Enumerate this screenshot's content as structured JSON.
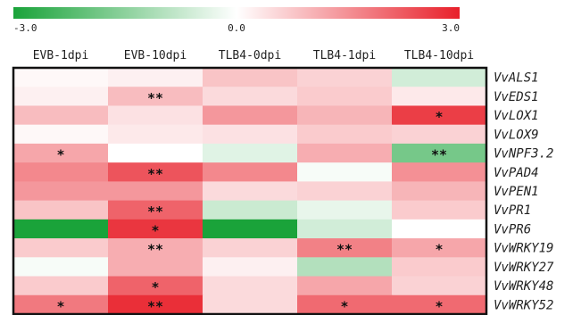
{
  "chart_data": {
    "type": "heatmap",
    "colorbar": {
      "min_label": "-3.0",
      "mid_label": "0.0",
      "max_label": "3.0",
      "vmin": -3.0,
      "vmax": 3.0,
      "low_color": "#1aa33a",
      "mid_color": "#ffffff",
      "high_color": "#e8202a"
    },
    "columns": [
      "EVB-1dpi",
      "EVB-10dpi",
      "TLB4-0dpi",
      "TLB4-1dpi",
      "TLB4-10dpi"
    ],
    "rows": [
      "VvALS1",
      "VvEDS1",
      "VvLOX1",
      "VvLOX9",
      "VvNPF3.2",
      "VvPAD4",
      "VvPEN1",
      "VvPR1",
      "VvPR6",
      "VvWRKY19",
      "VvWRKY27",
      "VvWRKY48",
      "VvWRKY52"
    ],
    "values": [
      [
        0.1,
        0.2,
        0.8,
        0.6,
        -0.6
      ],
      [
        0.2,
        0.9,
        0.5,
        0.7,
        0.3
      ],
      [
        0.9,
        0.4,
        1.4,
        1.0,
        2.6
      ],
      [
        0.1,
        0.3,
        0.4,
        0.7,
        0.6
      ],
      [
        1.2,
        0.0,
        -0.4,
        1.1,
        -1.8
      ],
      [
        1.6,
        2.3,
        1.6,
        -0.1,
        1.5
      ],
      [
        1.4,
        1.4,
        0.5,
        0.6,
        1.0
      ],
      [
        0.8,
        2.1,
        -0.7,
        -0.3,
        0.7
      ],
      [
        -3.0,
        2.7,
        -3.0,
        -0.6,
        0.0
      ],
      [
        0.7,
        1.1,
        0.6,
        1.7,
        1.2
      ],
      [
        -0.1,
        1.1,
        0.2,
        -1.0,
        0.7
      ],
      [
        0.7,
        2.1,
        0.5,
        1.2,
        0.6
      ],
      [
        1.8,
        2.8,
        0.5,
        2.0,
        2.0
      ]
    ],
    "annotations": [
      [
        "",
        "",
        "",
        "",
        ""
      ],
      [
        "",
        "**",
        "",
        "",
        ""
      ],
      [
        "",
        "",
        "",
        "",
        "*"
      ],
      [
        "",
        "",
        "",
        "",
        ""
      ],
      [
        "*",
        "",
        "",
        "",
        "**"
      ],
      [
        "",
        "**",
        "",
        "",
        ""
      ],
      [
        "",
        "",
        "",
        "",
        ""
      ],
      [
        "",
        "**",
        "",
        "",
        ""
      ],
      [
        "",
        "*",
        "",
        "",
        ""
      ],
      [
        "",
        "**",
        "",
        "**",
        "*"
      ],
      [
        "",
        "",
        "",
        "",
        ""
      ],
      [
        "",
        "*",
        "",
        "",
        ""
      ],
      [
        "*",
        "**",
        "",
        "*",
        "*"
      ]
    ]
  }
}
